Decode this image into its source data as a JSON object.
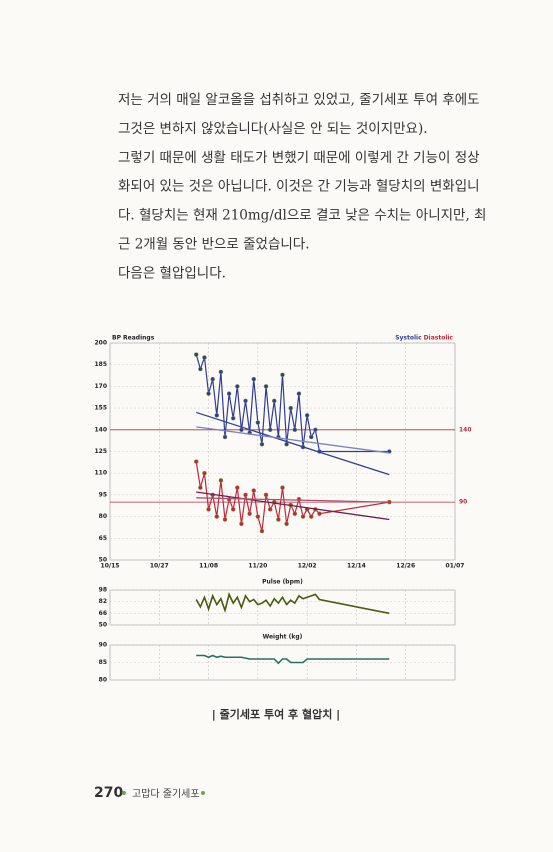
{
  "text": {
    "lines": [
      "저는 거의 매일 알코올을 섭취하고 있었고, 줄기세포 투여 후에도",
      "그것은 변하지 않았습니다(사실은 안 되는 것이지만요).",
      "그렇기 때문에 생활 태도가 변했기 때문에 이렇게 간 기능이 정상",
      "화되어 있는 것은 아닙니다. 이것은 간 기능과 혈당치의 변화입니",
      "다. 혈당치는 현재 210mg/dl으로 결코 낮은 수치는 아니지만, 최",
      "근 2개월 동안 반으로 줄었습니다.",
      "다음은 혈압입니다."
    ]
  },
  "charts": [
    {
      "type": "line",
      "title": "BP Readings",
      "xlim": [
        0,
        84
      ],
      "xticks": [
        {
          "value": 0,
          "label": "10/15"
        },
        {
          "value": 12,
          "label": "10/27"
        },
        {
          "value": 24,
          "label": "11/08"
        },
        {
          "value": 36,
          "label": "11/20"
        },
        {
          "value": 48,
          "label": "12/02"
        },
        {
          "value": 60,
          "label": "12/14"
        },
        {
          "value": 72,
          "label": "12/26"
        },
        {
          "value": 84,
          "label": "01/07"
        }
      ],
      "ylim": [
        50,
        200
      ],
      "yticks": [
        50,
        65,
        80,
        95,
        110,
        125,
        140,
        155,
        170,
        185,
        200
      ],
      "x": [
        21,
        22,
        23,
        24,
        25,
        26,
        27,
        28,
        29,
        30,
        31,
        32,
        33,
        34,
        35,
        36,
        37,
        38,
        39,
        40,
        41,
        42,
        43,
        44,
        45,
        46,
        47,
        48,
        49,
        50,
        51,
        68
      ],
      "series": [
        {
          "name": "Systolic",
          "color": "#2f3d94",
          "values": [
            192,
            182,
            190,
            165,
            175,
            150,
            180,
            135,
            165,
            148,
            170,
            140,
            160,
            138,
            175,
            145,
            130,
            170,
            140,
            160,
            135,
            178,
            130,
            155,
            140,
            165,
            128,
            150,
            135,
            140,
            125,
            125
          ]
        },
        {
          "name": "Diastolic",
          "color": "#c0283a",
          "values": [
            118,
            100,
            110,
            85,
            95,
            80,
            105,
            78,
            92,
            85,
            100,
            75,
            95,
            82,
            98,
            80,
            70,
            95,
            85,
            90,
            78,
            100,
            75,
            88,
            82,
            92,
            80,
            85,
            80,
            85,
            82,
            90
          ]
        }
      ],
      "reference_lines": [
        140,
        90
      ],
      "reference_color": "#b03040",
      "trend_lines": [
        {
          "color": "#2f3d94",
          "x": [
            21,
            68
          ],
          "values": [
            152,
            109
          ]
        },
        {
          "color": "#7a86c0",
          "x": [
            21,
            68
          ],
          "values": [
            142,
            124
          ]
        },
        {
          "color": "#6a2050",
          "x": [
            21,
            68
          ],
          "values": [
            97,
            78
          ]
        },
        {
          "color": "#b05070",
          "x": [
            21,
            68
          ],
          "values": [
            93,
            90
          ]
        }
      ]
    },
    {
      "type": "line",
      "title": "Pulse (bpm)",
      "color": "#4a5a10",
      "xlim": [
        0,
        84
      ],
      "ylim": [
        50,
        98
      ],
      "yticks": [
        98,
        82,
        66,
        50
      ],
      "x": [
        21,
        22,
        23,
        24,
        25,
        26,
        27,
        28,
        29,
        30,
        31,
        32,
        33,
        34,
        35,
        36,
        37,
        38,
        39,
        40,
        41,
        42,
        43,
        44,
        45,
        46,
        47,
        48,
        49,
        50,
        51,
        68
      ],
      "values": [
        85,
        75,
        88,
        72,
        90,
        78,
        86,
        70,
        92,
        80,
        88,
        74,
        90,
        82,
        85,
        78,
        80,
        84,
        76,
        86,
        80,
        88,
        78,
        84,
        80,
        90,
        86,
        88,
        90,
        92,
        85,
        66
      ]
    },
    {
      "type": "line",
      "title": "Weight (kg)",
      "color": "#2a7060",
      "xlim": [
        0,
        84
      ],
      "ylim": [
        80,
        90
      ],
      "yticks": [
        90,
        85,
        80
      ],
      "x": [
        21,
        23,
        24,
        25,
        26,
        27,
        28,
        30,
        32,
        34,
        36,
        38,
        40,
        41,
        42,
        43,
        44,
        46,
        47,
        48,
        50,
        68
      ],
      "values": [
        87,
        87,
        86.5,
        87,
        86.5,
        86.8,
        86.5,
        86.5,
        86.5,
        86,
        86,
        86,
        86,
        84.8,
        86,
        86,
        85,
        85,
        85,
        86,
        86,
        86
      ]
    }
  ],
  "caption": "| 줄기세포 투여 후 혈압치 |",
  "footer": {
    "page": "270",
    "book": "고맙다 줄기세포"
  }
}
